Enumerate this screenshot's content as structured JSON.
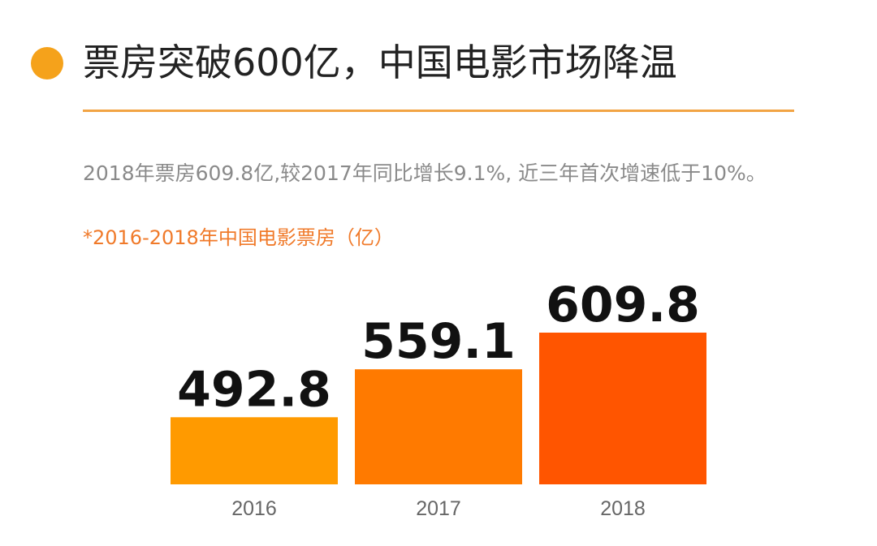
{
  "header": {
    "title": "票房突破600亿，中国电影市场降温"
  },
  "summary": "2018年票房609.8亿,较2017年同比增长9.1%, 近三年首次增速低于10%。",
  "colors": {
    "accent": "#F5A21B",
    "rule": "#F2A444",
    "chart_title": "#F07A2A",
    "bars": [
      "#FF9A00",
      "#FF7A00",
      "#FF5500"
    ]
  },
  "chart_data": {
    "type": "bar",
    "title": "*2016-2018年中国电影票房（亿）",
    "categories": [
      "2016",
      "2017",
      "2018"
    ],
    "values": [
      492.8,
      559.1,
      609.8
    ],
    "value_labels": [
      "492.8",
      "559.1",
      "609.8"
    ],
    "xlabel": "",
    "ylabel": "",
    "grid": false,
    "legend": "none"
  }
}
